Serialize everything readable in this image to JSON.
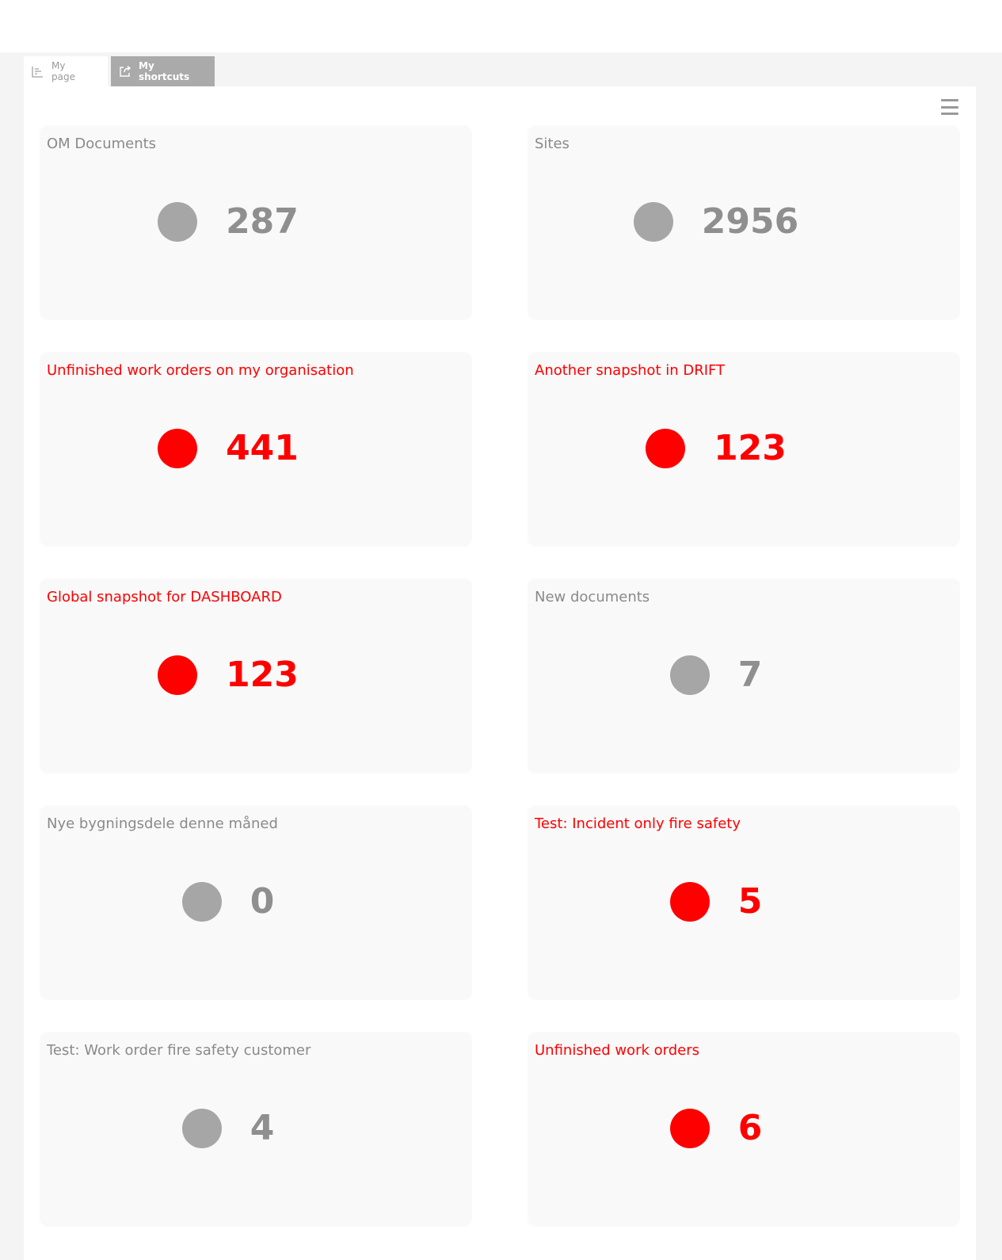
{
  "tabs": [
    {
      "label": "My page",
      "icon": "chart-icon",
      "active": false
    },
    {
      "label": "My shortcuts",
      "icon": "external-link-icon",
      "active": true
    }
  ],
  "menu": {
    "icon": "hamburger-menu-icon"
  },
  "colors": {
    "alert": "#ff0000",
    "neutral": "#a6a6a6",
    "card_bg": "#f9f9f9"
  },
  "cards": [
    {
      "title": "OM Documents",
      "value": "287",
      "status": "neutral"
    },
    {
      "title": "Sites",
      "value": "2956",
      "status": "neutral"
    },
    {
      "title": "Unfinished work orders on my organisation",
      "value": "441",
      "status": "alert"
    },
    {
      "title": "Another snapshot in DRIFT",
      "value": "123",
      "status": "alert"
    },
    {
      "title": "Global snapshot for DASHBOARD",
      "value": "123",
      "status": "alert"
    },
    {
      "title": "New documents",
      "value": "7",
      "status": "neutral"
    },
    {
      "title": "Nye bygningsdele denne måned",
      "value": "0",
      "status": "neutral"
    },
    {
      "title": "Test: Incident only fire safety",
      "value": "5",
      "status": "alert"
    },
    {
      "title": "Test: Work order fire safety customer",
      "value": "4",
      "status": "neutral"
    },
    {
      "title": "Unfinished work orders",
      "value": "6",
      "status": "alert"
    }
  ]
}
